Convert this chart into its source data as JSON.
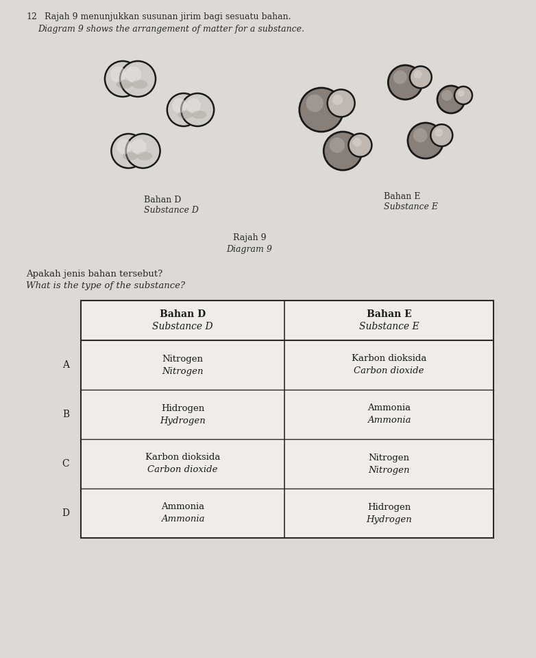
{
  "bg_color": "#ddd9d4",
  "question_number": "12",
  "title_malay": "Rajah 9 menunjukkan susunan jirim bagi sesuatu bahan.",
  "title_english": "Diagram 9 shows the arrangement of matter for a substance.",
  "label_d_malay": "Bahan D",
  "label_d_english": "Substance D",
  "label_e_malay": "Bahan E",
  "label_e_english": "Substance E",
  "diagram_label_malay": "Rajah 9",
  "diagram_label_english": "Diagram 9",
  "question_malay": "Apakah jenis bahan tersebut?",
  "question_english": "What is the type of the substance?",
  "rows": [
    {
      "option": "A",
      "col1_line1": "Nitrogen",
      "col1_line2": "Nitrogen",
      "col2_line1": "Karbon dioksida",
      "col2_line2": "Carbon dioxide"
    },
    {
      "option": "B",
      "col1_line1": "Hidrogen",
      "col1_line2": "Hydrogen",
      "col2_line1": "Ammonia",
      "col2_line2": "Ammonia"
    },
    {
      "option": "C",
      "col1_line1": "Karbon dioksida",
      "col1_line2": "Carbon dioxide",
      "col2_line1": "Nitrogen",
      "col2_line2": "Nitrogen"
    },
    {
      "option": "D",
      "col1_line1": "Ammonia",
      "col1_line2": "Ammonia",
      "col2_line1": "Hidrogen",
      "col2_line2": "Hydrogen"
    }
  ]
}
